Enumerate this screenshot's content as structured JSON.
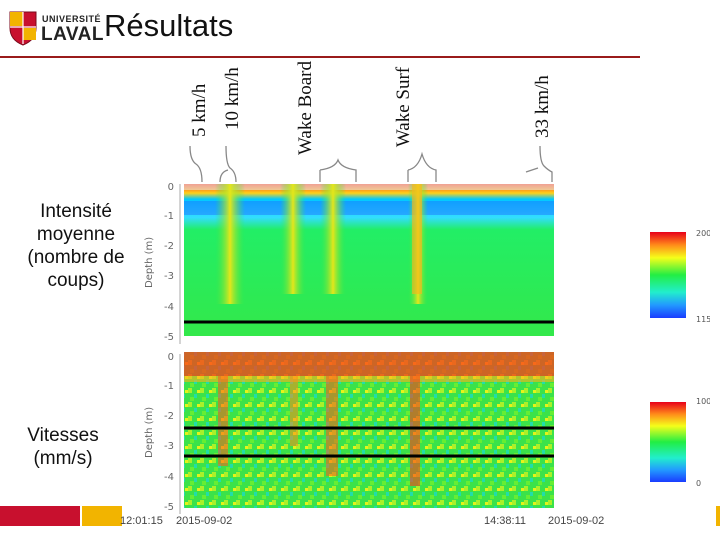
{
  "header": {
    "logo_line1": "UNIVERSITÉ",
    "logo_line2": "LAVAL",
    "title": "Résultats"
  },
  "top_labels": [
    {
      "text": "5 km/h"
    },
    {
      "text": "10 km/h"
    },
    {
      "text": "Wake Board"
    },
    {
      "text": "Wake Surf"
    },
    {
      "text": "33 km/h"
    }
  ],
  "panels": {
    "intensity": {
      "side_label": "Intensité moyenne (nombre de coups)",
      "ylabel": "Depth (m)",
      "yticks": [
        "0",
        "-1",
        "-2",
        "-3",
        "-4",
        "-5"
      ],
      "colorbar_max": "200",
      "colorbar_min": "115"
    },
    "velocity": {
      "side_label": "Vitesses (mm/s)",
      "ylabel": "Depth (m)",
      "yticks": [
        "0",
        "-1",
        "-2",
        "-3",
        "-4",
        "-5"
      ],
      "colorbar_max": "100",
      "colorbar_min": "0"
    }
  },
  "footer": {
    "time_start": "12:01:15",
    "date_start": "2015-09-02",
    "time_end": "14:38:11",
    "date_end": "2015-09-02"
  },
  "colors": {
    "title_rule": "#9a1b1b",
    "footer_red": "#c8102e",
    "footer_gold": "#f2b400"
  }
}
